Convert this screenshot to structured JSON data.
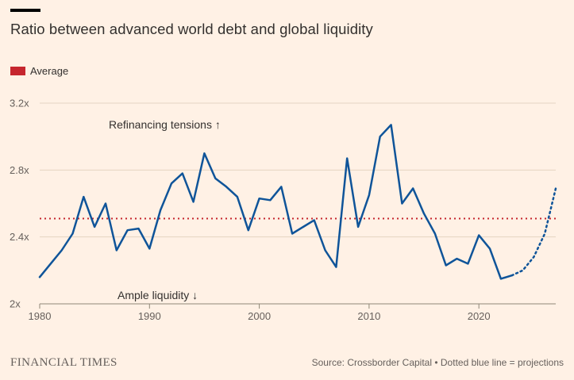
{
  "page": {
    "title": "Ratio between advanced world debt and global liquidity",
    "footer_brand": "FINANCIAL TIMES",
    "footer_source": "Source: Crossborder Capital • Dotted blue line = projections"
  },
  "legend": {
    "average_label": "Average"
  },
  "annotations": {
    "top": "Refinancing tensions ↑",
    "bottom": "Ample liquidity ↓"
  },
  "colors": {
    "background": "#FFF1E5",
    "line_blue": "#0F5499",
    "average_red": "#C6262E",
    "text_dark": "#33302E",
    "text_muted": "#66605C",
    "gridline": "#E4D4C2",
    "baseline": "#8F8878"
  },
  "chart_data": {
    "type": "line",
    "title": "Ratio between advanced world debt and global liquidity",
    "x": [
      1980,
      1981,
      1982,
      1983,
      1984,
      1985,
      1986,
      1987,
      1988,
      1989,
      1990,
      1991,
      1992,
      1993,
      1994,
      1995,
      1996,
      1997,
      1998,
      1999,
      2000,
      2001,
      2002,
      2003,
      2004,
      2005,
      2006,
      2007,
      2008,
      2009,
      2010,
      2011,
      2012,
      2013,
      2014,
      2015,
      2016,
      2017,
      2018,
      2019,
      2020,
      2021,
      2022,
      2023,
      2024,
      2025,
      2026,
      2027
    ],
    "series": [
      {
        "name": "Advanced world debt / global liquidity ratio",
        "values": [
          2.16,
          2.24,
          2.32,
          2.42,
          2.64,
          2.46,
          2.6,
          2.32,
          2.44,
          2.45,
          2.33,
          2.56,
          2.72,
          2.78,
          2.61,
          2.9,
          2.75,
          2.7,
          2.64,
          2.44,
          2.63,
          2.62,
          2.7,
          2.42,
          2.46,
          2.5,
          2.32,
          2.22,
          2.87,
          2.46,
          2.65,
          3.0,
          3.07,
          2.6,
          2.69,
          2.54,
          2.42,
          2.23,
          2.27,
          2.24,
          2.41,
          2.33,
          2.15,
          2.17,
          2.2,
          2.28,
          2.42,
          2.69
        ]
      }
    ],
    "average": 2.51,
    "projection_start_year": 2023,
    "projection_note": "Dotted blue line = projections",
    "xlim": [
      1980,
      2027
    ],
    "ylim": [
      2.0,
      3.2
    ],
    "x_ticks": [
      1980,
      1990,
      2000,
      2010,
      2020
    ],
    "y_ticks": [
      {
        "value": 2.0,
        "label": "2x"
      },
      {
        "value": 2.4,
        "label": "2.4x"
      },
      {
        "value": 2.8,
        "label": "2.8x"
      },
      {
        "value": 3.2,
        "label": "3.2x"
      }
    ],
    "grid": true,
    "legend_position": "top-left"
  }
}
